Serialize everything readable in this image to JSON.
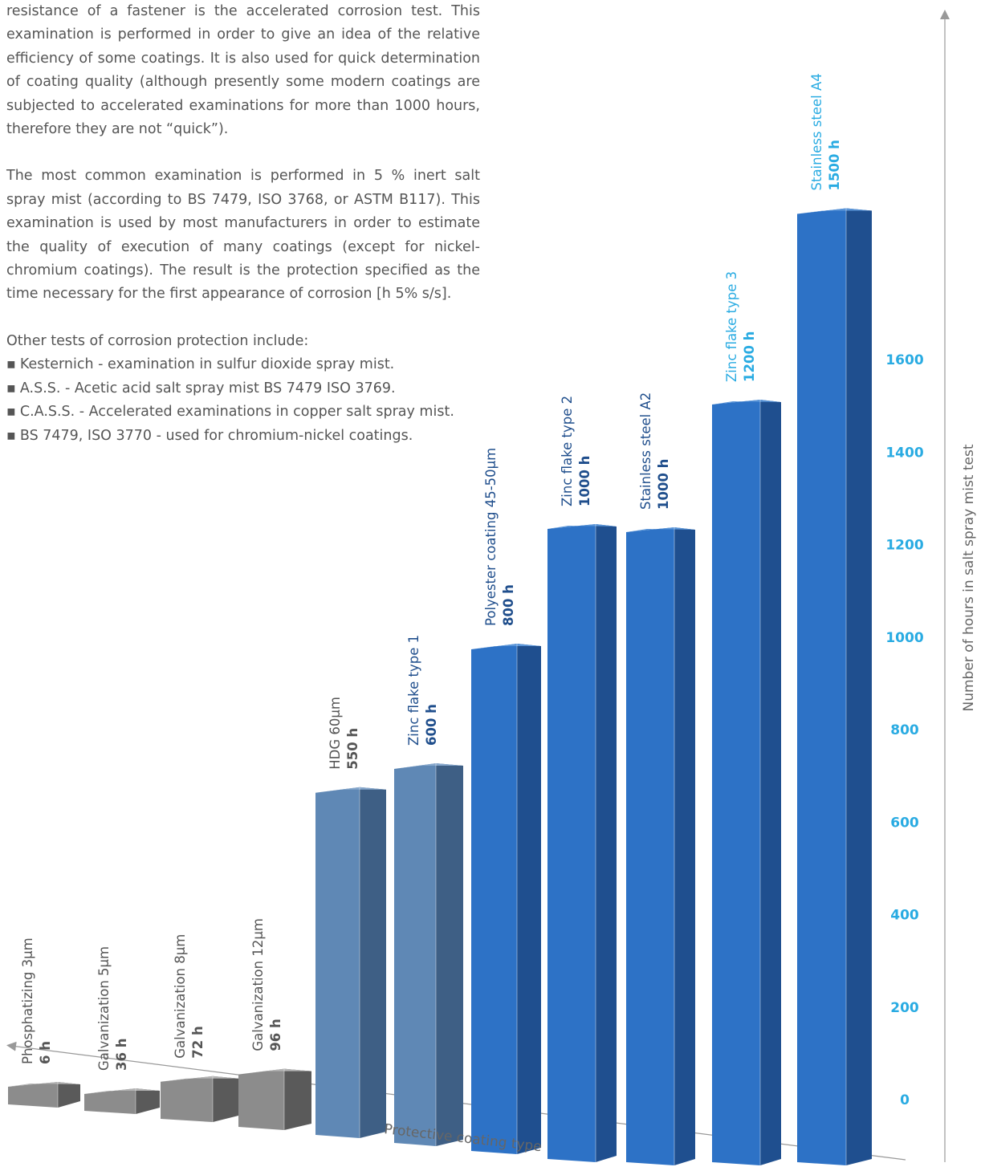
{
  "text": {
    "para1": "resistance of a fastener is the accelerated corrosion test. This examination is performed in order to give an idea of the relative efficiency of some coatings. It is also used for quick determination of coating quality (although presently some modern coatings are subjected to accelerated examinations for more than 1000 hours, therefore they are not “quick”).",
    "para2": "The most common examination is performed in 5 % inert salt spray mist (according to BS 7479, ISO 3768, or ASTM B117). This examination is used by most manufacturers in order to estimate the quality of execution of many coatings (except for nickel-chromium coatings). The result is the protection specified as the time necessary for the first appearance of corrosion [h 5% s/s].",
    "list_intro": "Other tests of corrosion protection include:",
    "list": [
      "Kesternich - examination in sulfur dioxide spray mist.",
      "A.S.S. - Acetic acid salt spray mist BS 7479 ISO 3769.",
      "C.A.S.S. - Accelerated examinations in copper salt spray mist.",
      "BS 7479, ISO 3770 - used for chromium-nickel coatings."
    ]
  },
  "chart_data": {
    "type": "bar",
    "title": "",
    "xlabel": "Protective coating type",
    "ylabel": "Number of hours in salt spray mist test",
    "ylim": [
      0,
      1700
    ],
    "yticks": [
      0,
      200,
      400,
      600,
      800,
      1000,
      1200,
      1400,
      1600
    ],
    "categories": [
      "Phosphatizing 3µm",
      "Galvanization 5µm",
      "Galvanization 8µm",
      "Galvanization 12µm",
      "HDG 60µm",
      "Zinc flake type 1",
      "Polyester coating 45-50µm",
      "Zinc flake type 2",
      "Stainless steel A2",
      "Zinc flake type 3",
      "Stainless steel A4"
    ],
    "value_labels": [
      "6 h",
      "36 h",
      "72 h",
      "96 h",
      "550 h",
      "600 h",
      "800 h",
      "1000 h",
      "1000 h",
      "1200 h",
      "1500 h"
    ],
    "values": [
      6,
      36,
      72,
      96,
      550,
      600,
      800,
      1000,
      1000,
      1200,
      1500
    ],
    "grid": false,
    "colors": {
      "gray_bar": "#8a8a8a",
      "steel_bar": "#5f88b5",
      "blue_bar": "#2a6fc4",
      "label_dark": "#1f4e8c",
      "label_light": "#29abe2",
      "label_gray": "#555555",
      "tick": "#29abe2"
    }
  }
}
